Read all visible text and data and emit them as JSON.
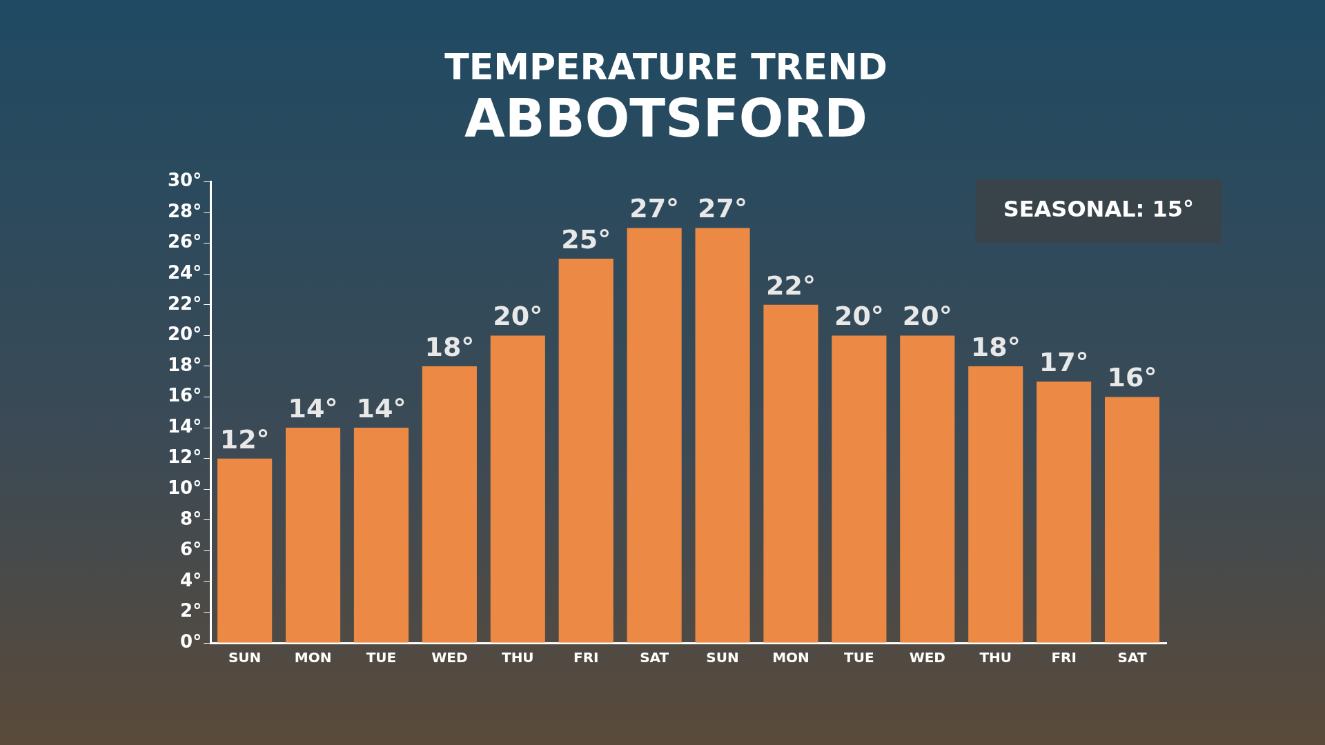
{
  "chart_data": {
    "type": "bar",
    "title": "TEMPERATURE TREND",
    "subtitle": "ABBOTSFORD",
    "categories": [
      "SUN",
      "MON",
      "TUE",
      "WED",
      "THU",
      "FRI",
      "SAT",
      "SUN",
      "MON",
      "TUE",
      "WED",
      "THU",
      "FRI",
      "SAT"
    ],
    "values": [
      12,
      14,
      14,
      18,
      20,
      25,
      27,
      27,
      22,
      20,
      20,
      18,
      17,
      16
    ],
    "value_labels": [
      "12°",
      "14°",
      "14°",
      "18°",
      "20°",
      "25°",
      "27°",
      "27°",
      "22°",
      "20°",
      "20°",
      "18°",
      "17°",
      "16°"
    ],
    "color": "#ec8a45",
    "ylim": [
      0,
      30
    ],
    "yticks": [
      {
        "value": 0,
        "label": "0°"
      },
      {
        "value": 2,
        "label": "2°"
      },
      {
        "value": 4,
        "label": "4°"
      },
      {
        "value": 6,
        "label": "6°"
      },
      {
        "value": 8,
        "label": "8°"
      },
      {
        "value": 10,
        "label": "10°"
      },
      {
        "value": 12,
        "label": "12°"
      },
      {
        "value": 14,
        "label": "14°"
      },
      {
        "value": 16,
        "label": "16°"
      },
      {
        "value": 18,
        "label": "18°"
      },
      {
        "value": 20,
        "label": "20°"
      },
      {
        "value": 22,
        "label": "22°"
      },
      {
        "value": 24,
        "label": "24°"
      },
      {
        "value": 26,
        "label": "26°"
      },
      {
        "value": 28,
        "label": "28°"
      },
      {
        "value": 30,
        "label": "30°"
      }
    ],
    "annotations": [
      "SEASONAL: 15°"
    ],
    "grid": false,
    "legend": false
  }
}
